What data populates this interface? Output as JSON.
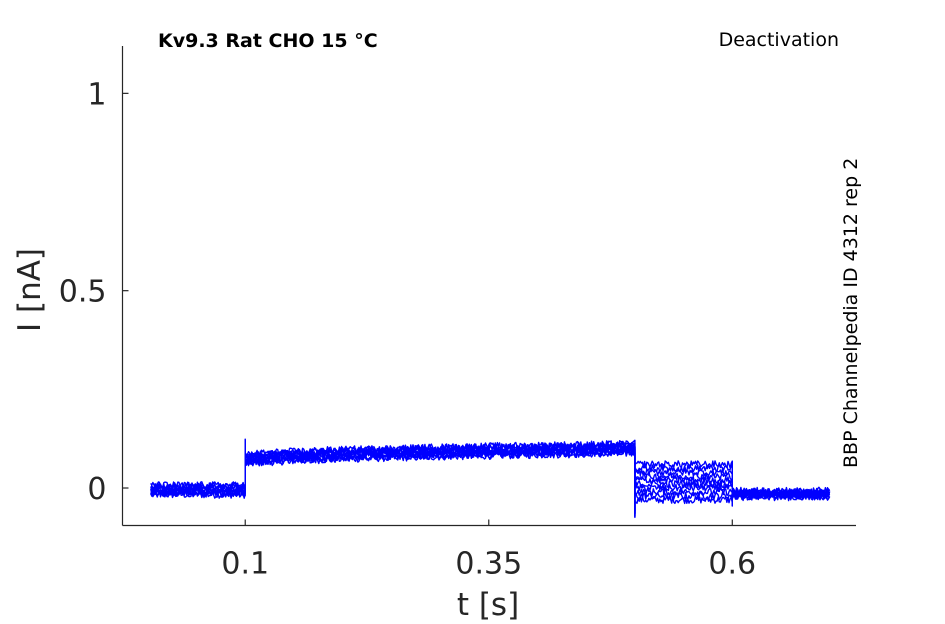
{
  "chart_data": {
    "type": "line",
    "title": "Kv9.3  Rat  CHO  15 °C",
    "annotation": "Deactivation",
    "side_label": "BBP Channelpedia ID 4312 rep 2",
    "xlabel": "t [s]",
    "ylabel": "I [nA]",
    "x_ticks": [
      {
        "value": 0.1,
        "label": "0.1"
      },
      {
        "value": 0.35,
        "label": "0.35"
      },
      {
        "value": 0.6,
        "label": "0.6"
      }
    ],
    "y_ticks": [
      {
        "value": 0,
        "label": "0"
      },
      {
        "value": 0.5,
        "label": "0.5"
      },
      {
        "value": 1,
        "label": "1"
      }
    ],
    "xlim": [
      -0.026,
      0.727
    ],
    "ylim": [
      -0.095,
      1.12
    ],
    "grid": false,
    "line_color": "#0000ff",
    "segments": [
      {
        "t_start": 0.003,
        "t_end": 0.1,
        "level_start": -0.005,
        "level_end": -0.005,
        "spread": 0.012
      },
      {
        "t_start": 0.1,
        "t_end": 0.5,
        "level_start": 0.07,
        "level_end": 0.1,
        "spread": 0.012
      },
      {
        "t_start": 0.5,
        "t_end": 0.6,
        "level_start": 0.015,
        "level_end": 0.015,
        "spread": 0.045
      },
      {
        "t_start": 0.6,
        "t_end": 0.7,
        "level_start": -0.015,
        "level_end": -0.015,
        "spread": 0.008
      }
    ],
    "transients": [
      {
        "t": 0.1,
        "peak": 0.115
      },
      {
        "t": 0.5,
        "peak": -0.065
      },
      {
        "t": 0.6,
        "peak": -0.04
      }
    ],
    "series_count": 10
  }
}
